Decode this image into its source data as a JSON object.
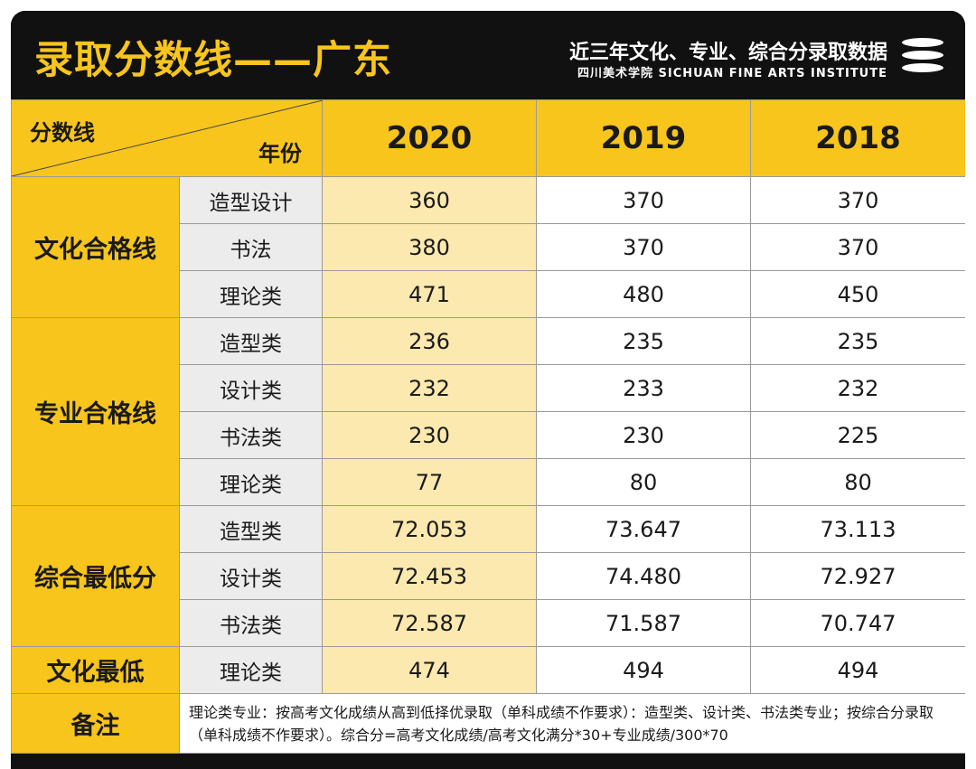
{
  "header": {
    "title": "录取分数线——广东",
    "subtitle": "近三年文化、专业、综合分录取数据",
    "institute": "四川美术学院 SICHUAN FINE ARTS INSTITUTE",
    "logo_icon": "stacked-bars-logo-icon"
  },
  "colors": {
    "accent": "#f7c51c",
    "highlight_column": "#fbe9b0",
    "dark": "#111111",
    "subcategory_bg": "#ececec"
  },
  "table": {
    "corner_top": "分数线",
    "corner_bottom": "年份",
    "years": [
      "2020",
      "2019",
      "2018"
    ],
    "groups": [
      {
        "name": "文化合格线",
        "rows": [
          {
            "label": "造型设计",
            "values": [
              "360",
              "370",
              "370"
            ]
          },
          {
            "label": "书法",
            "values": [
              "380",
              "370",
              "370"
            ]
          },
          {
            "label": "理论类",
            "values": [
              "471",
              "480",
              "450"
            ]
          }
        ]
      },
      {
        "name": "专业合格线",
        "rows": [
          {
            "label": "造型类",
            "values": [
              "236",
              "235",
              "235"
            ]
          },
          {
            "label": "设计类",
            "values": [
              "232",
              "233",
              "232"
            ]
          },
          {
            "label": "书法类",
            "values": [
              "230",
              "230",
              "225"
            ]
          },
          {
            "label": "理论类",
            "values": [
              "77",
              "80",
              "80"
            ]
          }
        ]
      },
      {
        "name": "综合最低分",
        "rows": [
          {
            "label": "造型类",
            "values": [
              "72.053",
              "73.647",
              "73.113"
            ]
          },
          {
            "label": "设计类",
            "values": [
              "72.453",
              "74.480",
              "72.927"
            ]
          },
          {
            "label": "书法类",
            "values": [
              "72.587",
              "71.587",
              "70.747"
            ]
          }
        ]
      },
      {
        "name": "文化最低",
        "rows": [
          {
            "label": "理论类",
            "values": [
              "474",
              "494",
              "494"
            ]
          }
        ]
      }
    ],
    "note_label": "备注",
    "note_text": "理论类专业：按高考文化成绩从高到低择优录取（单科成绩不作要求）：造型类、设计类、书法类专业；按综合分录取（单科成绩不作要求）。综合分=高考文化成绩/高考文化满分*30+专业成绩/300*70"
  }
}
